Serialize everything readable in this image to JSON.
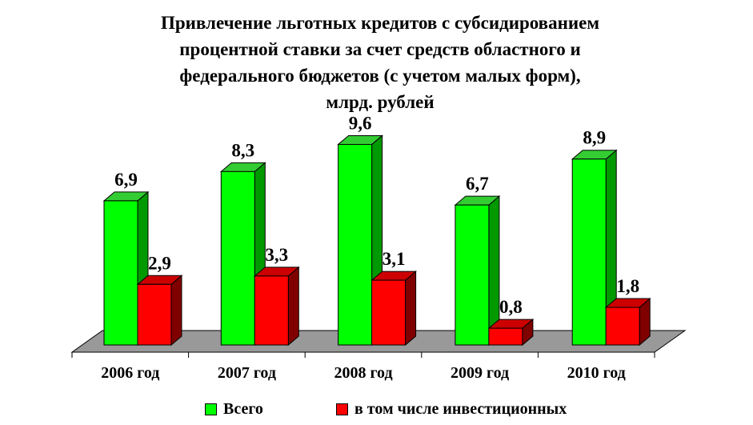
{
  "chart_data": {
    "type": "bar",
    "title": "Привлечение льготных кредитов с субсидированием\nпроцентной ставки за счет средств областного и\nфедерального бюджетов (с учетом малых форм),\nмлрд. рублей",
    "categories": [
      "2006 год",
      "2007 год",
      "2008 год",
      "2009 год",
      "2010 год"
    ],
    "series": [
      {
        "name": "Всего",
        "values": [
          6.9,
          8.3,
          9.6,
          6.7,
          8.9
        ],
        "labels": [
          "6,9",
          "8,3",
          "9,6",
          "6,7",
          "8,9"
        ],
        "color": "#00ff00",
        "side_color": "#009900",
        "top_color": "#33cc33"
      },
      {
        "name": "в том числе инвестиционных",
        "values": [
          2.9,
          3.3,
          3.1,
          0.8,
          1.8
        ],
        "labels": [
          "2,9",
          "3,3",
          "3,1",
          "0,8",
          "1,8"
        ],
        "color": "#ff0000",
        "side_color": "#800000",
        "top_color": "#cc0000"
      }
    ],
    "ylim": [
      0,
      10
    ],
    "grid": false,
    "legend_position": "bottom",
    "floor_color": "#999999",
    "style": "3d-clustered-column"
  }
}
